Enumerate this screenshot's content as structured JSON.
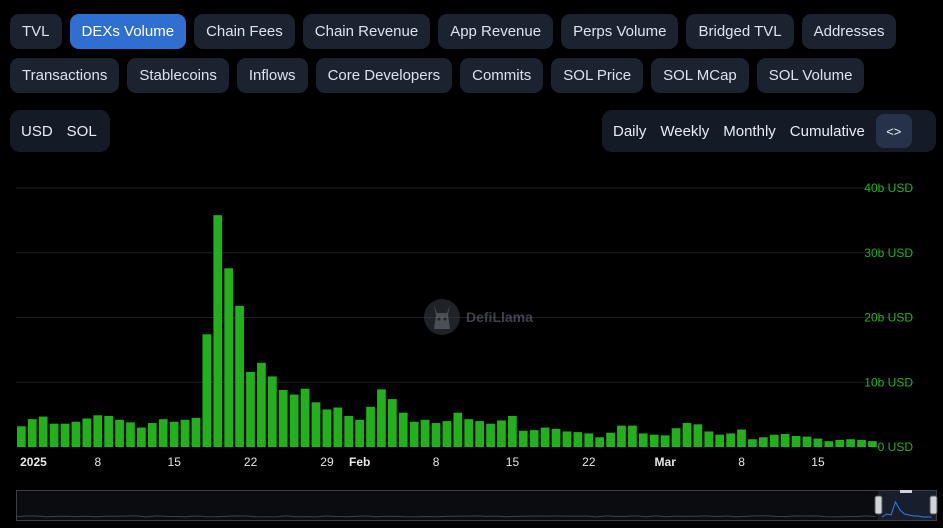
{
  "tabs_row1": [
    "TVL",
    "DEXs Volume",
    "Chain Fees",
    "Chain Revenue",
    "App Revenue",
    "Perps Volume",
    "Bridged TVL",
    "Addresses"
  ],
  "tabs_row2": [
    "Transactions",
    "Stablecoins",
    "Inflows",
    "Core Developers",
    "Commits",
    "SOL Price",
    "SOL MCap",
    "SOL Volume"
  ],
  "active_tab": "DEXs Volume",
  "denomination": {
    "usd": "USD",
    "sol": "SOL"
  },
  "period": {
    "daily": "Daily",
    "weekly": "Weekly",
    "monthly": "Monthly",
    "cumulative": "Cumulative",
    "embed": "<>"
  },
  "watermark": "DefiLlama",
  "colors": {
    "bar": "#21b11a",
    "tab_active": "#2f6fd1",
    "tab_bg": "#1b2331",
    "axis_label": "#21b11a"
  },
  "chart_data": {
    "type": "bar",
    "series": [
      {
        "values": [
          3.2,
          4.3,
          4.7,
          3.6,
          3.6,
          3.9,
          4.4,
          4.9,
          4.8,
          4.2,
          3.8,
          3.0,
          3.7,
          4.3,
          3.9,
          4.2,
          4.5,
          17.4,
          35.8,
          27.6,
          21.8,
          11.6,
          13.0,
          10.9,
          8.8,
          8.1,
          9.0,
          6.9,
          5.8,
          6.1,
          4.8,
          4.2,
          6.2,
          8.9,
          7.4,
          5.3,
          3.9,
          4.2,
          3.7,
          4.0,
          5.3,
          4.3,
          4.0,
          3.6,
          4.1,
          4.8,
          2.5,
          2.6,
          3.0,
          2.8,
          2.4,
          2.3,
          2.1,
          1.5,
          2.2,
          3.3,
          3.3,
          2.1,
          1.9,
          1.8,
          2.9,
          3.7,
          3.5,
          2.4,
          1.9,
          2.1,
          2.7,
          1.2,
          1.5,
          1.9,
          2.0,
          1.7,
          1.6,
          1.3,
          0.9,
          1.1,
          1.2,
          1.1,
          0.9
        ]
      }
    ],
    "x_ticks": [
      {
        "label": "2025",
        "index": 0,
        "bold": true
      },
      {
        "label": "8",
        "index": 7
      },
      {
        "label": "15",
        "index": 14
      },
      {
        "label": "22",
        "index": 21
      },
      {
        "label": "29",
        "index": 28
      },
      {
        "label": "Feb",
        "index": 31,
        "bold": true
      },
      {
        "label": "8",
        "index": 38
      },
      {
        "label": "15",
        "index": 45
      },
      {
        "label": "22",
        "index": 52
      },
      {
        "label": "Mar",
        "index": 59,
        "bold": true
      },
      {
        "label": "8",
        "index": 66
      },
      {
        "label": "15",
        "index": 73
      }
    ],
    "y_ticks": [
      "0 USD",
      "10b USD",
      "20b USD",
      "30b USD",
      "40b USD"
    ],
    "ylim": [
      0,
      40
    ],
    "grid": true
  }
}
